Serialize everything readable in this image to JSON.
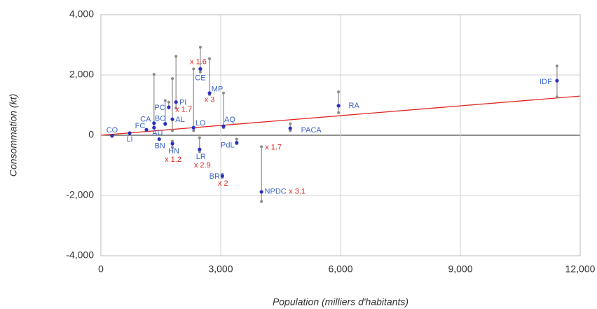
{
  "chart_data": {
    "type": "scatter",
    "x_label": "Population (milliers d'habitants)",
    "y_label": "Consommation (kt)",
    "categories": [
      "CO",
      "LI",
      "FC",
      "CA",
      "AU",
      "BN",
      "BO",
      "PC",
      "AL",
      "HN",
      "PI",
      "LO",
      "CE",
      "LR",
      "MP",
      "AQ",
      "PdL",
      "BR",
      "NPDC",
      "PACA",
      "RA",
      "IDF"
    ],
    "x": [
      280,
      720,
      1140,
      1330,
      1330,
      1460,
      1610,
      1700,
      1790,
      1790,
      1880,
      2320,
      2490,
      2470,
      2720,
      3070,
      3400,
      3040,
      4020,
      4740,
      5950,
      11420
    ],
    "values": [
      -20,
      70,
      180,
      400,
      250,
      -130,
      380,
      930,
      530,
      -280,
      1100,
      250,
      2200,
      -470,
      1400,
      300,
      -250,
      -1350,
      -1880,
      230,
      980,
      1810
    ],
    "low": [
      null,
      null,
      null,
      250,
      null,
      null,
      350,
      900,
      150,
      -400,
      900,
      150,
      2100,
      -550,
      1350,
      250,
      -280,
      -1400,
      -2200,
      150,
      750,
      1270
    ],
    "high": [
      null,
      null,
      null,
      2020,
      null,
      null,
      1150,
      1100,
      1880,
      -200,
      2620,
      2200,
      2920,
      -80,
      2540,
      1400,
      -130,
      -1300,
      -380,
      380,
      1440,
      2300
    ],
    "annotations": [
      null,
      null,
      null,
      null,
      null,
      null,
      null,
      null,
      null,
      [
        "x 1.2"
      ],
      [
        "x 1.7"
      ],
      null,
      [
        "x 1.6"
      ],
      [
        "x 2.9"
      ],
      [
        "x 3"
      ],
      null,
      null,
      [
        "x 2"
      ],
      [
        "x 3.1",
        "x 1.7"
      ],
      null,
      null,
      null
    ],
    "color": "#2a2fc0",
    "range_color": "#8a8a8a",
    "label_color": "#3a63c8",
    "annotation_color": "#e0261f",
    "trend": {
      "x": [
        0,
        12000
      ],
      "y": [
        0,
        1300
      ],
      "color": "#e0261f"
    },
    "xlim": [
      0,
      12000
    ],
    "xticks": [
      0,
      {
        "value": 3000,
        "label": "3,000"
      },
      {
        "value": 6000,
        "label": "6,000"
      },
      {
        "value": 9000,
        "label": "9,000"
      },
      {
        "value": 12000,
        "label": "12,000"
      }
    ],
    "ylim": [
      -4000,
      4000
    ],
    "yticks": [
      {
        "value": -4000,
        "label": "-4,000"
      },
      {
        "value": -2000,
        "label": "-2,000"
      },
      0,
      {
        "value": 2000,
        "label": "2,000"
      },
      {
        "value": 4000,
        "label": "4,000"
      }
    ],
    "grid": true
  }
}
